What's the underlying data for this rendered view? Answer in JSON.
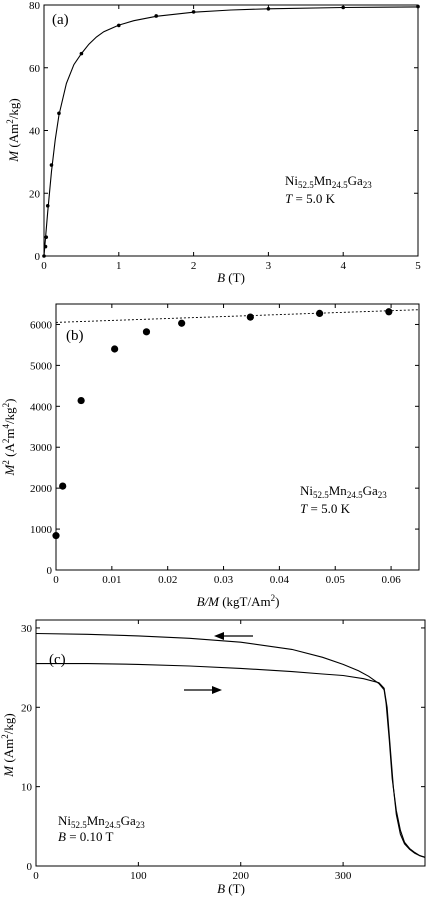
{
  "chart_data": [
    {
      "type": "scatter",
      "panel_label": "(a)",
      "xlabel_sym": "B",
      "xlabel_unit": "(T)",
      "ylabel_sym": "M",
      "ylabel_unit_pre": "(Am",
      "ylabel_unit_sup": "2",
      "ylabel_unit_post": "/kg)",
      "xlim": [
        0,
        5
      ],
      "ylim": [
        0,
        80
      ],
      "xticks": [
        0,
        1,
        2,
        3,
        4,
        5
      ],
      "yticks": [
        0,
        20,
        40,
        60,
        80
      ],
      "annotation": {
        "compound": [
          "Ni",
          "52.5",
          "Mn",
          "24.5",
          "Ga",
          "23"
        ],
        "line2_sym": "T",
        "line2_rest": " = 5.0 K"
      },
      "series": [
        {
          "marker": "dot",
          "x": [
            0.0,
            0.02,
            0.03,
            0.05,
            0.1,
            0.2,
            0.5,
            1.0,
            1.5,
            2.0,
            3.0,
            4.0,
            5.0
          ],
          "y": [
            0,
            3,
            6,
            16,
            29,
            45.5,
            64.5,
            73.5,
            76.5,
            77.8,
            78.8,
            79.2,
            79.5
          ]
        },
        {
          "marker": "line",
          "x": [
            0,
            0.05,
            0.1,
            0.15,
            0.2,
            0.3,
            0.4,
            0.5,
            0.6,
            0.7,
            0.8,
            1.0,
            1.2,
            1.5,
            2.0,
            2.5,
            3.0,
            4.0,
            5.0
          ],
          "y": [
            0,
            14,
            27,
            37,
            45,
            55,
            61,
            64.5,
            67.5,
            69.8,
            71.5,
            73.6,
            75,
            76.4,
            77.7,
            78.4,
            78.8,
            79.2,
            79.4
          ]
        }
      ]
    },
    {
      "type": "scatter",
      "panel_label": "(b)",
      "xlabel_sym": "B/M",
      "xlabel_unit": "(kgT/Am",
      "xlabel_sup": "2",
      "xlabel_close": ")",
      "ylabel_sym": "M",
      "ylabel_sup1": "2",
      "ylabel_unit_pre": "(A",
      "ylabel_sup2": "2",
      "ylabel_mid": "m",
      "ylabel_sup3": "4",
      "ylabel_mid2": "/kg",
      "ylabel_sup4": "2",
      "ylabel_close": ")",
      "xlim": [
        0,
        0.065
      ],
      "ylim": [
        0,
        6500
      ],
      "xticks": [
        "0",
        "0.01",
        "0.02",
        "0.03",
        "0.04",
        "0.05",
        "0.06"
      ],
      "xtick_values": [
        0,
        0.01,
        0.02,
        0.03,
        0.04,
        0.05,
        0.06
      ],
      "yticks": [
        0,
        1000,
        2000,
        3000,
        4000,
        5000,
        6000
      ],
      "annotation": {
        "compound": [
          "Ni",
          "52.5",
          "Mn",
          "24.5",
          "Ga",
          "23"
        ],
        "line2_sym": "T",
        "line2_rest": " = 5.0 K"
      },
      "series": [
        {
          "marker": "big-dot",
          "x": [
            0.0,
            0.0012,
            0.0045,
            0.0105,
            0.0162,
            0.0225,
            0.0348,
            0.0472,
            0.0596
          ],
          "y": [
            840,
            2050,
            4140,
            5400,
            5820,
            6030,
            6180,
            6270,
            6310
          ]
        },
        {
          "marker": "dashed-line",
          "x": [
            0,
            0.065
          ],
          "y": [
            6050,
            6360
          ]
        }
      ]
    },
    {
      "type": "line",
      "panel_label": "(c)",
      "xlabel_sym": "B",
      "xlabel_unit": "(T)",
      "ylabel_sym": "M",
      "ylabel_unit_pre": "(Am",
      "ylabel_unit_sup": "2",
      "ylabel_unit_post": "/kg)",
      "xlim": [
        0,
        380
      ],
      "ylim": [
        0,
        31
      ],
      "xticks": [
        0,
        100,
        200,
        300
      ],
      "yticks": [
        0,
        10,
        20,
        30
      ],
      "annotation": {
        "compound": [
          "Ni",
          "52.5",
          "Mn",
          "24.5",
          "Ga",
          "23"
        ],
        "line2_sym": "B",
        "line2_rest": " = 0.10 T"
      },
      "series": [
        {
          "direction": "cooling",
          "x": [
            0,
            50,
            100,
            150,
            200,
            250,
            280,
            300,
            315,
            325,
            335,
            340,
            342,
            345,
            348,
            352,
            356,
            360,
            365,
            370,
            375,
            380
          ],
          "y": [
            29.3,
            29.2,
            29.0,
            28.7,
            28.2,
            27.3,
            26.3,
            25.4,
            24.6,
            23.9,
            23.0,
            22.2,
            20.5,
            16,
            11,
            7,
            4.5,
            3,
            2.2,
            1.7,
            1.3,
            1.1
          ]
        },
        {
          "direction": "warming",
          "x": [
            0,
            50,
            100,
            150,
            200,
            250,
            280,
            300,
            320,
            335,
            340,
            343,
            346,
            349,
            352,
            356,
            360,
            365,
            370,
            375,
            380
          ],
          "y": [
            25.5,
            25.5,
            25.4,
            25.2,
            24.9,
            24.5,
            24.2,
            24.0,
            23.6,
            23.1,
            22.4,
            20,
            15,
            10,
            6.5,
            4,
            2.8,
            2.1,
            1.6,
            1.3,
            1.1
          ]
        }
      ]
    }
  ]
}
